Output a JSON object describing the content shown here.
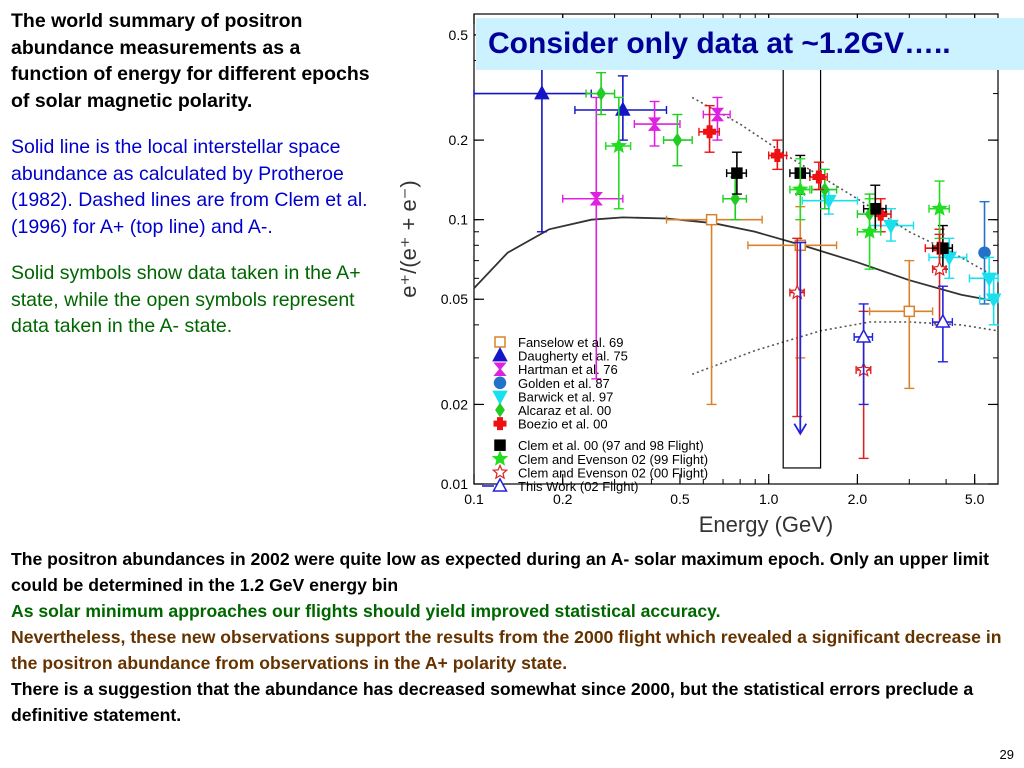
{
  "sidebar": {
    "summary": "The world summary of positron abundance measurements as a function of energy for different epochs of solar magnetic polarity.",
    "solid_line": "Solid line is the local interstellar space abundance as calculated by Protheroe (1982). Dashed lines are from Clem et al. (1996) for A+ (top line) and A-.",
    "symbols": "Solid symbols show data taken in the A+ state, while the open symbols represent data taken in the A- state."
  },
  "callout": "Consider only data at ~1.2GV…..",
  "bottom": {
    "line1": "The positron abundances in 2002 were quite low as expected during an A- solar maximum epoch. Only an upper limit could be determined in the 1.2 GeV energy bin",
    "line2": "As solar minimum approaches our flights should yield improved statistical accuracy.",
    "line3": "Nevertheless, these new observations support the results from the 2000 flight which revealed a significant decrease in the positron abundance from observations in the A+ polarity state.",
    "line4": "There is a suggestion that the abundance has decreased somewhat since 2000, but the statistical errors preclude a definitive statement."
  },
  "page_number": "29",
  "chart_data": {
    "type": "scatter",
    "xlabel": "Energy (GeV)",
    "ylabel": "e⁺/(e⁺ + e⁻)",
    "xscale": "log",
    "yscale": "log",
    "xlim": [
      0.1,
      6.0
    ],
    "ylim": [
      0.01,
      0.6
    ],
    "x_ticks": [
      {
        "v": 0.1,
        "label": "0.1"
      },
      {
        "v": 0.2,
        "label": "0.2"
      },
      {
        "v": 0.5,
        "label": "0.5"
      },
      {
        "v": 1.0,
        "label": "1.0"
      },
      {
        "v": 2.0,
        "label": "2.0"
      },
      {
        "v": 5.0,
        "label": "5.0"
      }
    ],
    "y_ticks": [
      {
        "v": 0.5,
        "label": "0.5"
      },
      {
        "v": 0.2,
        "label": "0.2"
      },
      {
        "v": 0.1,
        "label": "0.1"
      },
      {
        "v": 0.05,
        "label": "0.05"
      },
      {
        "v": 0.02,
        "label": "0.02"
      },
      {
        "v": 0.01,
        "label": "0.01"
      }
    ],
    "highlight_box": {
      "x": [
        1.12,
        1.5
      ],
      "y": [
        0.0115,
        0.38
      ]
    },
    "series": [
      {
        "name": "Fanselow et al. 69",
        "color": "#d8832b",
        "marker": "square",
        "filled": false,
        "points": [
          {
            "x": 0.64,
            "y": 0.1,
            "xerr": [
              0.45,
              0.95
            ],
            "yerr": [
              0.02,
              0.1
            ]
          },
          {
            "x": 1.28,
            "y": 0.08,
            "xerr": [
              0.85,
              1.7
            ],
            "yerr": [
              0.03,
              0.112
            ]
          },
          {
            "x": 3.0,
            "y": 0.045,
            "xerr": [
              2.2,
              3.6
            ],
            "yerr": [
              0.023,
              0.07
            ]
          }
        ]
      },
      {
        "name": "Daugherty et al. 75",
        "color": "#1515c8",
        "marker": "triangle",
        "filled": true,
        "points": [
          {
            "x": 0.17,
            "y": 0.3,
            "xerr": [
              0.1,
              0.25
            ],
            "yerr": [
              0.09,
              0.45
            ]
          },
          {
            "x": 0.32,
            "y": 0.26,
            "xerr": [
              0.22,
              0.45
            ],
            "yerr": [
              0.2,
              0.35
            ]
          }
        ]
      },
      {
        "name": "Hartman et al. 76",
        "color": "#e020e0",
        "marker": "hourglass",
        "filled": true,
        "points": [
          {
            "x": 0.26,
            "y": 0.12,
            "xerr": [
              0.2,
              0.32
            ],
            "yerr": [
              0.025,
              0.29
            ]
          },
          {
            "x": 0.41,
            "y": 0.23,
            "xerr": [
              0.35,
              0.5
            ],
            "yerr": [
              0.19,
              0.28
            ]
          },
          {
            "x": 0.67,
            "y": 0.25,
            "xerr": [
              0.6,
              0.74
            ],
            "yerr": [
              0.2,
              0.29
            ]
          }
        ]
      },
      {
        "name": "Golden et al. 87",
        "color": "#2272c8",
        "marker": "circle",
        "filled": true,
        "points": [
          {
            "x": 5.4,
            "y": 0.075,
            "xerr": null,
            "yerr": [
              0.048,
              0.117
            ]
          }
        ]
      },
      {
        "name": "Barwick et al. 97",
        "color": "#1ae0ee",
        "marker": "triangle-down",
        "filled": true,
        "points": [
          {
            "x": 1.6,
            "y": 0.118,
            "xerr": [
              1.3,
              2.0
            ],
            "yerr": [
              0.105,
              0.13
            ]
          },
          {
            "x": 2.6,
            "y": 0.095,
            "xerr": [
              2.2,
              3.1
            ],
            "yerr": [
              0.083,
              0.11
            ]
          },
          {
            "x": 4.1,
            "y": 0.072,
            "xerr": [
              3.5,
              4.7
            ],
            "yerr": [
              0.06,
              0.085
            ]
          },
          {
            "x": 5.6,
            "y": 0.06,
            "xerr": [
              4.8,
              6.0
            ],
            "yerr": [
              0.05,
              0.072
            ]
          },
          {
            "x": 5.8,
            "y": 0.05,
            "xerr": [
              5.2,
              6.0
            ],
            "yerr": [
              0.04,
              0.062
            ]
          }
        ]
      },
      {
        "name": "Alcaraz et al. 00",
        "color": "#22cc22",
        "marker": "diamond",
        "filled": true,
        "points": [
          {
            "x": 0.27,
            "y": 0.3,
            "xerr": [
              0.24,
              0.3
            ],
            "yerr": [
              0.25,
              0.36
            ]
          },
          {
            "x": 0.49,
            "y": 0.2,
            "xerr": [
              0.44,
              0.55
            ],
            "yerr": [
              0.16,
              0.25
            ]
          },
          {
            "x": 0.77,
            "y": 0.12,
            "xerr": [
              0.7,
              0.84
            ],
            "yerr": [
              0.1,
              0.145
            ]
          },
          {
            "x": 1.55,
            "y": 0.13,
            "xerr": [
              1.4,
              1.7
            ],
            "yerr": [
              0.11,
              0.155
            ]
          },
          {
            "x": 2.2,
            "y": 0.105,
            "xerr": [
              2.0,
              2.4
            ],
            "yerr": [
              0.09,
              0.125
            ]
          }
        ]
      },
      {
        "name": "Boezio et al. 00",
        "color": "#ee1111",
        "marker": "cross",
        "filled": true,
        "points": [
          {
            "x": 0.63,
            "y": 0.215,
            "xerr": [
              0.58,
              0.68
            ],
            "yerr": [
              0.18,
              0.27
            ]
          },
          {
            "x": 1.07,
            "y": 0.175,
            "xerr": [
              1.0,
              1.15
            ],
            "yerr": [
              0.155,
              0.2
            ]
          },
          {
            "x": 1.48,
            "y": 0.145,
            "xerr": [
              1.38,
              1.58
            ],
            "yerr": [
              0.13,
              0.165
            ]
          },
          {
            "x": 2.4,
            "y": 0.105,
            "xerr": [
              2.2,
              2.6
            ],
            "yerr": [
              0.09,
              0.12
            ]
          },
          {
            "x": 3.8,
            "y": 0.078,
            "xerr": [
              3.4,
              4.2
            ],
            "yerr": [
              0.065,
              0.092
            ]
          }
        ]
      },
      {
        "name": "Clem et al. 00 (97 and 98 Flight)",
        "color": "#000000",
        "marker": "square",
        "filled": true,
        "points": [
          {
            "x": 0.78,
            "y": 0.15,
            "xerr": [
              0.72,
              0.84
            ],
            "yerr": [
              0.125,
              0.18
            ]
          },
          {
            "x": 1.28,
            "y": 0.15,
            "xerr": [
              1.18,
              1.38
            ],
            "yerr": [
              0.125,
              0.175
            ]
          },
          {
            "x": 2.3,
            "y": 0.11,
            "xerr": [
              2.1,
              2.5
            ],
            "yerr": [
              0.09,
              0.135
            ]
          },
          {
            "x": 3.9,
            "y": 0.078,
            "xerr": [
              3.6,
              4.2
            ],
            "yerr": [
              0.065,
              0.095
            ]
          }
        ]
      },
      {
        "name": "Clem and Evenson 02 (99 Flight)",
        "color": "#22dd22",
        "marker": "star",
        "filled": true,
        "points": [
          {
            "x": 0.31,
            "y": 0.19,
            "xerr": [
              0.28,
              0.34
            ],
            "yerr": [
              0.11,
              0.29
            ]
          },
          {
            "x": 1.28,
            "y": 0.13,
            "xerr": [
              1.18,
              1.38
            ],
            "yerr": [
              0.1,
              0.17
            ]
          },
          {
            "x": 2.2,
            "y": 0.09,
            "xerr": [
              2.0,
              2.4
            ],
            "yerr": [
              0.065,
              0.12
            ]
          },
          {
            "x": 3.8,
            "y": 0.11,
            "xerr": [
              3.5,
              4.1
            ],
            "yerr": [
              0.085,
              0.14
            ]
          }
        ]
      },
      {
        "name": "Clem and Evenson 02 (00 Flight)",
        "color": "#dd2222",
        "marker": "star",
        "filled": false,
        "points": [
          {
            "x": 1.25,
            "y": 0.053,
            "xerr": [
              1.18,
              1.32
            ],
            "yerr": [
              0.018,
              0.085
            ]
          },
          {
            "x": 2.1,
            "y": 0.027,
            "xerr": [
              1.98,
              2.22
            ],
            "yerr": [
              0.0125,
              0.045
            ]
          },
          {
            "x": 3.8,
            "y": 0.065,
            "xerr": [
              3.6,
              4.0
            ],
            "yerr": [
              0.04,
              0.088
            ]
          }
        ]
      },
      {
        "name": "This Work (02 Flight)",
        "color": "#2222dd",
        "marker": "triangle",
        "filled": false,
        "points": [
          {
            "x": 2.1,
            "y": 0.036,
            "xerr": [
              1.95,
              2.25
            ],
            "yerr": [
              0.02,
              0.048
            ]
          },
          {
            "x": 3.9,
            "y": 0.041,
            "xerr": [
              3.6,
              4.2
            ],
            "yerr": [
              0.029,
              0.056
            ]
          }
        ],
        "upper_limit": {
          "x": 1.28,
          "y_top": 0.082,
          "y_bottom": 0.0155
        }
      }
    ],
    "curves": [
      {
        "name": "Protheroe (1982)",
        "style": "solid",
        "color": "#333333",
        "points": [
          [
            0.1,
            0.055
          ],
          [
            0.13,
            0.075
          ],
          [
            0.18,
            0.092
          ],
          [
            0.25,
            0.1
          ],
          [
            0.32,
            0.102
          ],
          [
            0.45,
            0.101
          ],
          [
            0.65,
            0.097
          ],
          [
            0.9,
            0.09
          ],
          [
            1.3,
            0.08
          ],
          [
            2.0,
            0.069
          ],
          [
            3.0,
            0.059
          ],
          [
            4.5,
            0.052
          ],
          [
            6.0,
            0.049
          ]
        ]
      },
      {
        "name": "Clem et al. (1996) A+",
        "style": "dotted",
        "color": "#555555",
        "points": [
          [
            0.55,
            0.29
          ],
          [
            0.8,
            0.23
          ],
          [
            1.2,
            0.17
          ],
          [
            2.0,
            0.12
          ],
          [
            3.0,
            0.09
          ],
          [
            4.2,
            0.075
          ],
          [
            6.0,
            0.06
          ]
        ]
      },
      {
        "name": "Clem et al. (1996) A-",
        "style": "dotted",
        "color": "#555555",
        "points": [
          [
            0.55,
            0.026
          ],
          [
            0.9,
            0.032
          ],
          [
            1.5,
            0.038
          ],
          [
            2.2,
            0.041
          ],
          [
            3.0,
            0.041
          ],
          [
            4.5,
            0.04
          ],
          [
            6.0,
            0.038
          ]
        ]
      }
    ]
  }
}
